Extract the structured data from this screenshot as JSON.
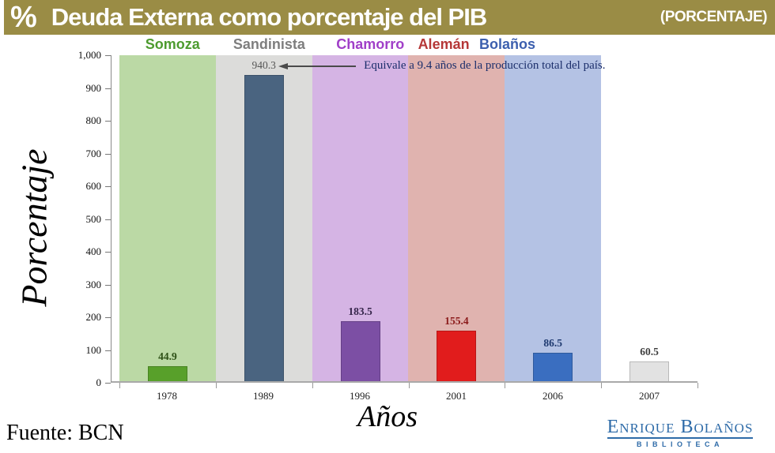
{
  "title_bar": {
    "percent_symbol": "%",
    "title": "Deuda Externa como porcentaje del PIB",
    "subtitle": "(PORCENTAJE)",
    "bg_color": "#9a8c45",
    "text_color": "#ffffff"
  },
  "source": {
    "text": "Fuente: BCN"
  },
  "logo": {
    "line1": "Enrique Bolaños",
    "line2": "BIBLIOTECA",
    "color": "#2e6ba8"
  },
  "chart_data": {
    "type": "bar",
    "title": "Deuda Externa como porcentaje del PIB (PORCENTAJE)",
    "xlabel": "Años",
    "ylabel": "Porcentaje",
    "ylim": [
      0,
      1000
    ],
    "ytick_interval": 100,
    "ytick_labels": [
      "1,000",
      "900",
      "800",
      "700",
      "600",
      "500",
      "400",
      "300",
      "200",
      "100",
      "0"
    ],
    "grid": false,
    "legend_position": "top",
    "categories": [
      "1978",
      "1989",
      "1996",
      "2001",
      "2006",
      "2007"
    ],
    "values": [
      44.9,
      940.3,
      183.5,
      155.4,
      86.5,
      60.5
    ],
    "value_labels": [
      "44.9",
      "940.3",
      "183.5",
      "155.4",
      "86.5",
      "60.5"
    ],
    "bar_colors": [
      "#58a02a",
      "#4a6480",
      "#7c4fa4",
      "#e11c1c",
      "#3a6ec0",
      "#e2e2e2"
    ],
    "value_label_colors": [
      "#2d5016",
      "#555555",
      "#35254a",
      "#8b1a1a",
      "#1f3a70",
      "#3f3f3f"
    ],
    "value_label_bold": [
      true,
      false,
      true,
      true,
      true,
      true
    ],
    "band_colors_by_slot": [
      "#bbd9a5",
      "#dcdcda",
      "#d5b4e4",
      "#e0b3af",
      "#b4c2e4",
      null
    ],
    "periods": [
      {
        "name": "Somoza",
        "year": "1978",
        "legend_color": "#4d9b2f",
        "band_color": "#bbd9a5"
      },
      {
        "name": "Sandinista",
        "year": "1989",
        "legend_color": "#7e7e7e",
        "band_color": "#dcdcda"
      },
      {
        "name": "Chamorro",
        "year": "1996",
        "legend_color": "#a03fc8",
        "band_color": "#d5b4e4"
      },
      {
        "name": "Alemán",
        "year": "2001",
        "legend_color": "#b53737",
        "band_color": "#e0b3af"
      },
      {
        "name": "Bolaños",
        "year": "2006",
        "legend_color": "#3c5fae",
        "band_color": "#b4c2e4"
      }
    ],
    "annotation": {
      "text": "Equivale a 9.4 años de la producción total del país.",
      "target_bar": "1989",
      "target_value": "940.3"
    }
  }
}
